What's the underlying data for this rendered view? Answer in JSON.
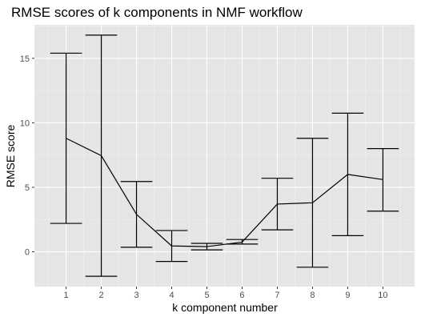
{
  "chart_data": {
    "type": "line",
    "title": "RMSE scores of k components in NMF workflow",
    "xlabel": "k component number",
    "ylabel": "RMSE score",
    "x": [
      1,
      2,
      3,
      4,
      5,
      6,
      7,
      8,
      9,
      10
    ],
    "series": [
      {
        "values": [
          8.8,
          7.45,
          2.9,
          0.45,
          0.4,
          0.75,
          3.7,
          3.8,
          6.0,
          5.6
        ],
        "error_lower": [
          2.2,
          -1.9,
          0.35,
          -0.75,
          0.15,
          0.6,
          1.7,
          -1.2,
          1.25,
          3.15
        ],
        "error_upper": [
          15.4,
          16.8,
          5.45,
          1.65,
          0.65,
          0.95,
          5.7,
          8.8,
          10.75,
          8.0
        ]
      }
    ],
    "xlim": [
      0.1,
      10.9
    ],
    "ylim": [
      -2.7,
      17.6
    ],
    "x_ticks": [
      1,
      2,
      3,
      4,
      5,
      6,
      7,
      8,
      9,
      10
    ],
    "x_tick_labels": [
      "1",
      "2",
      "3",
      "4",
      "5",
      "6",
      "7",
      "8",
      "9",
      "10"
    ],
    "y_ticks": [
      0,
      5,
      10,
      15
    ],
    "y_tick_labels": [
      "0",
      "5",
      "10",
      "15"
    ],
    "grid": true,
    "legend": "none",
    "colors": {
      "panel_background": "#e5e5e5",
      "grid_major": "#ffffff",
      "grid_minor": "#f0f0f0",
      "line": "#000000",
      "tick_mark": "#333333",
      "tick_label": "#4d4d4d"
    }
  }
}
